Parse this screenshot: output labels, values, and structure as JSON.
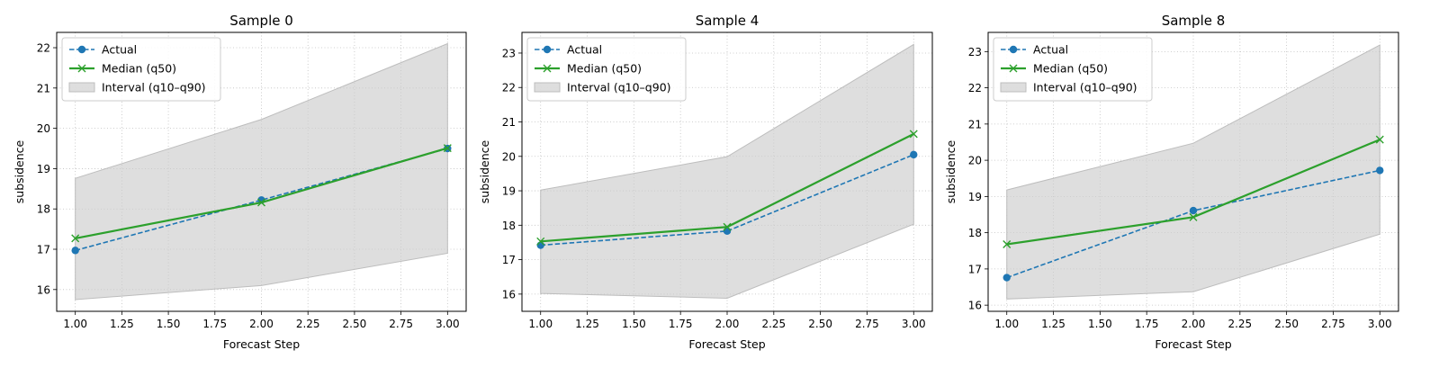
{
  "chart_data": [
    {
      "type": "line",
      "title": "Sample 0",
      "xlabel": "Forecast Step",
      "ylabel": "subsidence",
      "xlim": [
        0.9,
        3.1
      ],
      "ylim": [
        15.46,
        22.38
      ],
      "xticks": [
        "1.00",
        "1.25",
        "1.50",
        "1.75",
        "2.00",
        "2.25",
        "2.50",
        "2.75",
        "3.00"
      ],
      "yticks": [
        "16",
        "17",
        "18",
        "19",
        "20",
        "21",
        "22"
      ],
      "grid": true,
      "legend_position": "top-left",
      "x": [
        1,
        2,
        3
      ],
      "series": [
        {
          "name": "Actual",
          "values": [
            16.97,
            18.22,
            19.5
          ],
          "color": "#1f77b4",
          "style": "dashed",
          "marker": "circle"
        },
        {
          "name": "Median (q50)",
          "values": [
            17.27,
            18.16,
            19.51
          ],
          "color": "#2ca02c",
          "style": "solid",
          "marker": "x"
        }
      ],
      "interval": {
        "name": "Interval (q10–q90)",
        "lower": [
          15.75,
          16.1,
          16.9
        ],
        "upper": [
          18.76,
          20.22,
          22.1
        ],
        "color": "#cccccc"
      }
    },
    {
      "type": "line",
      "title": "Sample 4",
      "xlabel": "Forecast Step",
      "ylabel": "subsidence",
      "xlim": [
        0.9,
        3.1
      ],
      "ylim": [
        15.5,
        23.6
      ],
      "xticks": [
        "1.00",
        "1.25",
        "1.50",
        "1.75",
        "2.00",
        "2.25",
        "2.50",
        "2.75",
        "3.00"
      ],
      "yticks": [
        "16",
        "17",
        "18",
        "19",
        "20",
        "21",
        "22",
        "23"
      ],
      "grid": true,
      "legend_position": "top-left",
      "x": [
        1,
        2,
        3
      ],
      "series": [
        {
          "name": "Actual",
          "values": [
            17.42,
            17.83,
            20.05
          ],
          "color": "#1f77b4",
          "style": "dashed",
          "marker": "circle"
        },
        {
          "name": "Median (q50)",
          "values": [
            17.53,
            17.95,
            20.65
          ],
          "color": "#2ca02c",
          "style": "solid",
          "marker": "x"
        }
      ],
      "interval": {
        "name": "Interval (q10–q90)",
        "lower": [
          16.02,
          15.88,
          18.03
        ],
        "upper": [
          19.02,
          19.99,
          23.25
        ],
        "color": "#cccccc"
      }
    },
    {
      "type": "line",
      "title": "Sample 8",
      "xlabel": "Forecast Step",
      "ylabel": "subsidence",
      "xlim": [
        0.9,
        3.1
      ],
      "ylim": [
        15.83,
        23.53
      ],
      "xticks": [
        "1.00",
        "1.25",
        "1.50",
        "1.75",
        "2.00",
        "2.25",
        "2.50",
        "2.75",
        "3.00"
      ],
      "yticks": [
        "16",
        "17",
        "18",
        "19",
        "20",
        "21",
        "22",
        "23"
      ],
      "grid": true,
      "legend_position": "top-left",
      "x": [
        1,
        2,
        3
      ],
      "series": [
        {
          "name": "Actual",
          "values": [
            16.76,
            18.61,
            19.72
          ],
          "color": "#1f77b4",
          "style": "dashed",
          "marker": "circle"
        },
        {
          "name": "Median (q50)",
          "values": [
            17.68,
            18.43,
            20.57
          ],
          "color": "#2ca02c",
          "style": "solid",
          "marker": "x"
        }
      ],
      "interval": {
        "name": "Interval (q10–q90)",
        "lower": [
          16.17,
          16.37,
          17.96
        ],
        "upper": [
          19.18,
          20.47,
          23.18
        ],
        "color": "#cccccc"
      }
    }
  ]
}
